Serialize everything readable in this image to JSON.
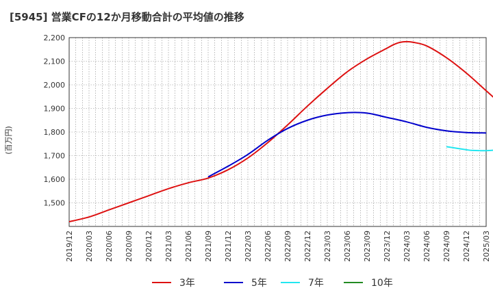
{
  "chart_data": {
    "type": "line",
    "title": "[5945]  営業CFの12か月移動合計の平均値の推移",
    "ylabel": "(百万円)",
    "xlabel": "",
    "ylim": [
      1400,
      2200
    ],
    "yticks": [
      1500,
      1600,
      1700,
      1800,
      1900,
      2000,
      2100,
      2200
    ],
    "ytick_labels": [
      "1,500",
      "1,600",
      "1,700",
      "1,800",
      "1,900",
      "2,000",
      "2,100",
      "2,200"
    ],
    "xlim": [
      "2019-12",
      "2025-03"
    ],
    "xtick_labels": [
      "2019/12",
      "2020/03",
      "2020/06",
      "2020/09",
      "2020/12",
      "2021/03",
      "2021/06",
      "2021/09",
      "2021/12",
      "2022/03",
      "2022/06",
      "2022/09",
      "2022/12",
      "2023/03",
      "2023/06",
      "2023/09",
      "2023/12",
      "2024/03",
      "2024/06",
      "2024/09",
      "2024/12",
      "2025/03"
    ],
    "grid": true,
    "legend_position": "bottom",
    "series": [
      {
        "name": "3年",
        "color": "#dd1111",
        "points": [
          [
            "2019-12",
            1420
          ],
          [
            "2020-03",
            1440
          ],
          [
            "2020-06",
            1470
          ],
          [
            "2020-09",
            1500
          ],
          [
            "2020-12",
            1530
          ],
          [
            "2021-03",
            1560
          ],
          [
            "2021-06",
            1585
          ],
          [
            "2021-09",
            1605
          ],
          [
            "2021-12",
            1640
          ],
          [
            "2022-03",
            1690
          ],
          [
            "2022-06",
            1755
          ],
          [
            "2022-09",
            1830
          ],
          [
            "2022-12",
            1910
          ],
          [
            "2023-03",
            1985
          ],
          [
            "2023-06",
            2055
          ],
          [
            "2023-09",
            2110
          ],
          [
            "2023-12",
            2155
          ],
          [
            "2024-01",
            2170
          ],
          [
            "2024-02",
            2180
          ],
          [
            "2024-03",
            2183
          ],
          [
            "2024-04",
            2180
          ],
          [
            "2024-06",
            2165
          ],
          [
            "2024-09",
            2115
          ],
          [
            "2024-12",
            2050
          ],
          [
            "2025-03",
            1975
          ],
          [
            "2025-05",
            1925
          ]
        ]
      },
      {
        "name": "5年",
        "color": "#0000cc",
        "points": [
          [
            "2021-09",
            1610
          ],
          [
            "2021-12",
            1655
          ],
          [
            "2022-03",
            1705
          ],
          [
            "2022-06",
            1765
          ],
          [
            "2022-09",
            1815
          ],
          [
            "2022-12",
            1850
          ],
          [
            "2023-03",
            1872
          ],
          [
            "2023-06",
            1882
          ],
          [
            "2023-09",
            1880
          ],
          [
            "2023-12",
            1862
          ],
          [
            "2024-03",
            1843
          ],
          [
            "2024-06",
            1820
          ],
          [
            "2024-09",
            1805
          ],
          [
            "2024-12",
            1798
          ],
          [
            "2025-03",
            1796
          ]
        ]
      },
      {
        "name": "7年",
        "color": "#22e6f0",
        "points": [
          [
            "2024-09",
            1738
          ],
          [
            "2024-12",
            1725
          ],
          [
            "2025-01",
            1722
          ],
          [
            "2025-03",
            1721
          ],
          [
            "2025-05",
            1725
          ]
        ]
      },
      {
        "name": "10年",
        "color": "#228b22",
        "points": []
      }
    ]
  }
}
